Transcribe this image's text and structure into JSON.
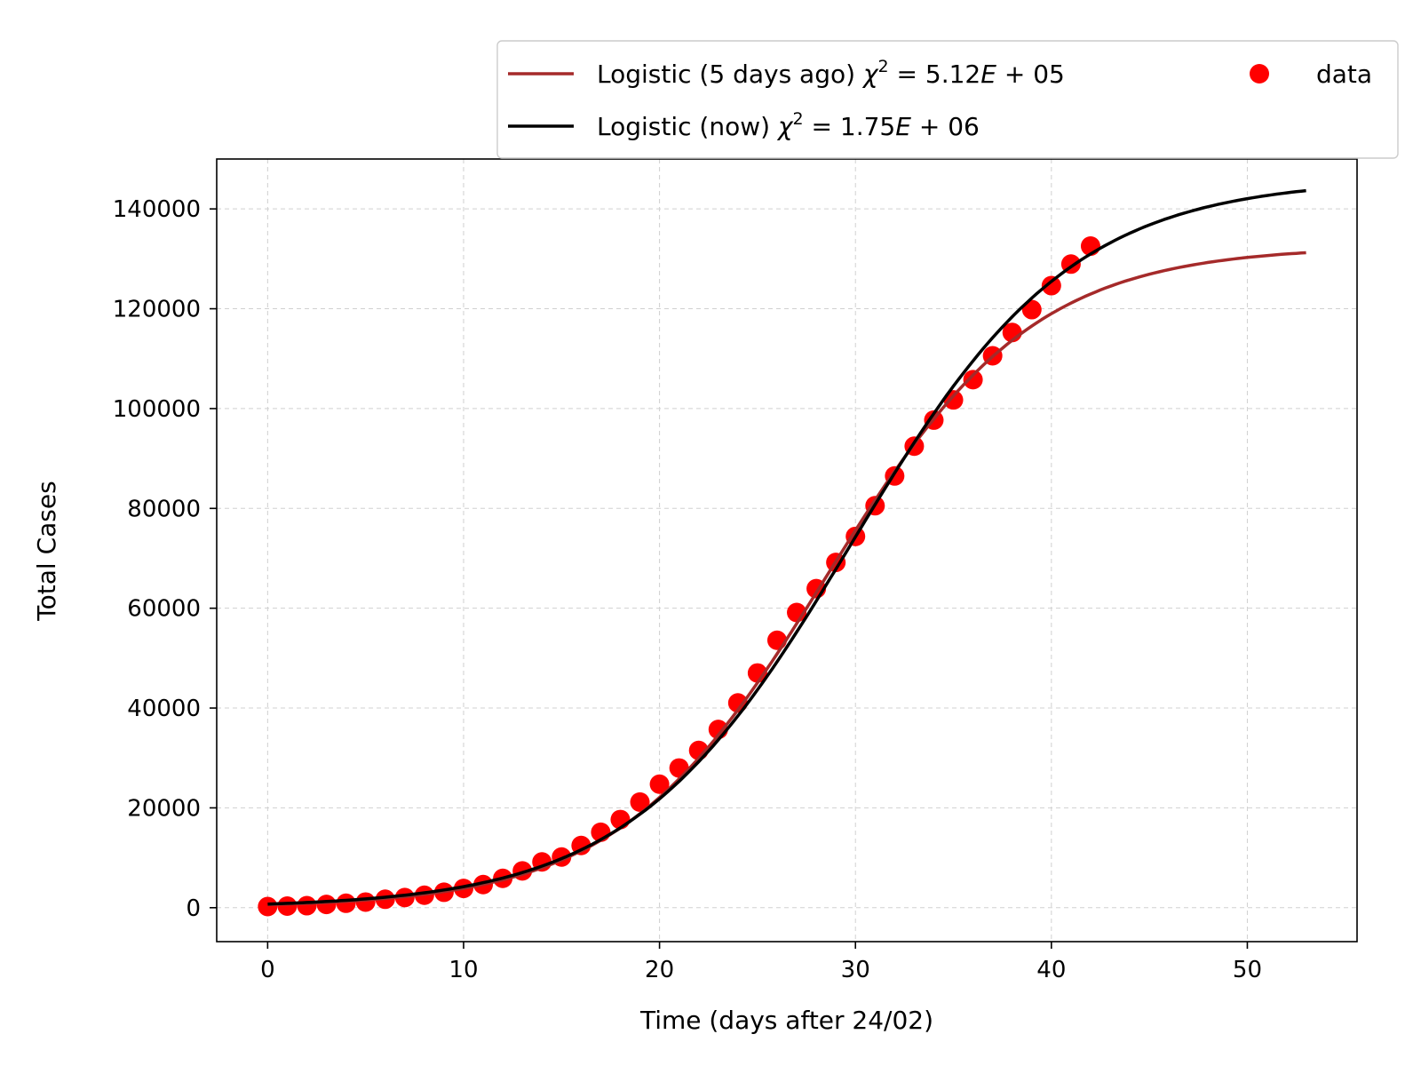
{
  "chart_data": {
    "type": "line",
    "xlabel": "Time (days after 24/02)",
    "ylabel": "Total Cases",
    "xlim": [
      -2.6,
      55.6
    ],
    "ylim": [
      -6800,
      150000
    ],
    "grid": true,
    "legend_position": "top-right (outside above plot)",
    "x_ticks": [
      0,
      10,
      20,
      30,
      40,
      50
    ],
    "x_tick_labels": [
      "0",
      "10",
      "20",
      "30",
      "40",
      "50"
    ],
    "y_ticks": [
      0,
      20000,
      40000,
      60000,
      80000,
      100000,
      120000,
      140000
    ],
    "y_tick_labels": [
      "0",
      "20000",
      "40000",
      "60000",
      "80000",
      "100000",
      "120000",
      "140000"
    ],
    "series": [
      {
        "name": "Logistic (5 days ago) χ² = 5.12E + 05",
        "legend_main": "Logistic (5 days ago) ",
        "legend_math": "χ",
        "legend_sup": "2",
        "legend_rest": " = 5.12",
        "legend_E": "E",
        "legend_tail": " + 05",
        "kind": "line",
        "color": "#a52a2a",
        "model": {
          "K": 132500,
          "r": 0.1893,
          "t0": 28.5
        },
        "x_range": [
          0,
          53
        ]
      },
      {
        "name": "Logistic (now) χ² = 1.75E + 06",
        "legend_main": "Logistic (now) ",
        "legend_math": "χ",
        "legend_sup": "2",
        "legend_rest": " = 1.75",
        "legend_E": "E",
        "legend_tail": " + 06",
        "kind": "line",
        "color": "#000000",
        "model": {
          "K": 146000,
          "r": 0.1775,
          "t0": 29.8
        },
        "x_range": [
          0,
          53
        ]
      },
      {
        "name": "data",
        "kind": "scatter",
        "color": "#ff0000",
        "x": [
          0,
          1,
          2,
          3,
          4,
          5,
          6,
          7,
          8,
          9,
          10,
          11,
          12,
          13,
          14,
          15,
          16,
          17,
          18,
          19,
          20,
          21,
          22,
          23,
          24,
          25,
          26,
          27,
          28,
          29,
          30,
          31,
          32,
          33,
          34,
          35,
          36,
          37,
          38,
          39,
          40,
          41,
          42
        ],
        "y": [
          229,
          322,
          400,
          650,
          888,
          1128,
          1694,
          2036,
          2502,
          3089,
          3858,
          4636,
          5883,
          7375,
          9172,
          10149,
          12462,
          15113,
          17660,
          21157,
          24747,
          27980,
          31506,
          35713,
          41035,
          47021,
          53578,
          59138,
          63927,
          69176,
          74386,
          80539,
          86498,
          92472,
          97689,
          101739,
          105792,
          110574,
          115242,
          119827,
          124632,
          128948,
          132547
        ]
      }
    ]
  }
}
